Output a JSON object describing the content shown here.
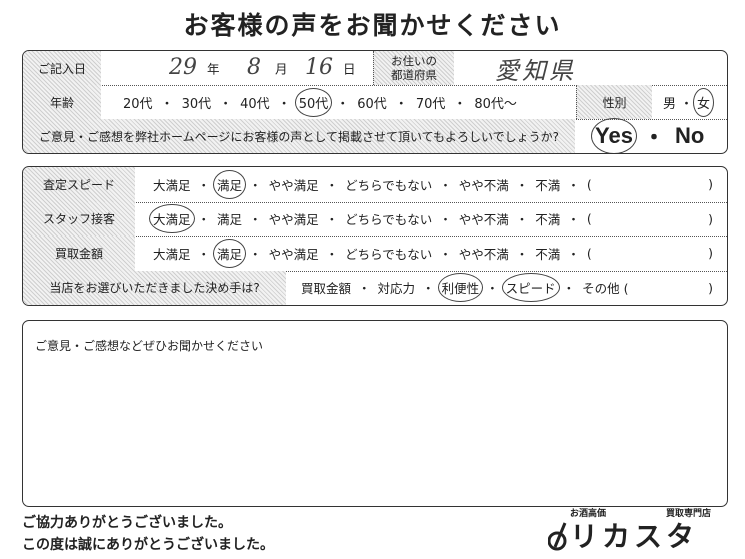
{
  "title": "お客様の声をお聞かせください",
  "info": {
    "date_label": "ご記入日",
    "year_value": "29",
    "year_unit": "年",
    "month_value": "8",
    "month_unit": "月",
    "day_value": "16",
    "day_unit": "日",
    "prefecture_label_1": "お住いの",
    "prefecture_label_2": "都道府県",
    "prefecture_value": "愛知県",
    "age_label": "年齢",
    "age_options": [
      "20代",
      "30代",
      "40代",
      "50代",
      "60代",
      "70代",
      "80代〜"
    ],
    "age_selected": "50代",
    "gender_label": "性別",
    "gender_options": [
      "男",
      "女"
    ],
    "gender_selected": "女",
    "publish_question": "ご意見・ご感想を弊社ホームページにお客様の声として掲載させて頂いてもよろしいでしょうか?",
    "publish_options": [
      "Yes",
      "No"
    ],
    "publish_selected": "Yes",
    "dot": "・"
  },
  "ratings": {
    "options": [
      "大満足",
      "満足",
      "やや満足",
      "どちらでもない",
      "やや不満",
      "不満",
      "(",
      ")"
    ],
    "rows": [
      {
        "label": "査定スピード",
        "selected": "満足"
      },
      {
        "label": "スタッフ接客",
        "selected": "大満足"
      },
      {
        "label": "買取金額",
        "selected": "満足"
      }
    ],
    "decision_label": "当店をお選びいただきました決め手は?",
    "decision_options": [
      "買取金額",
      "対応力",
      "利便性",
      "スピード",
      "その他 (",
      ")"
    ],
    "decision_selected": [
      "利便性",
      "スピード"
    ]
  },
  "comments": {
    "label": "ご意見・ご感想などぜひお聞かせください",
    "value": ""
  },
  "footer": {
    "thanks_1": "ご協力ありがとうございました。",
    "thanks_2": "この度は誠にありがとうございました。",
    "logo_top_left": "お酒高価",
    "logo_top_right": "買取専門店",
    "logo_main": "リカスタ"
  }
}
